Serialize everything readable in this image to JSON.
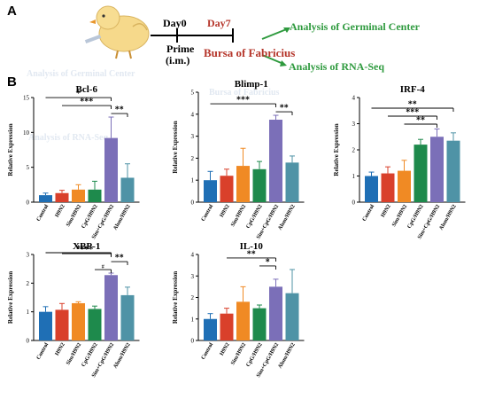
{
  "panel_a": {
    "letter": "A",
    "day0": "Day0",
    "day7": "Day7",
    "prime": "Prime",
    "route": "(i.m.)",
    "organ": "Bursa of Fabricius",
    "analysis1": "Analysis of Germinal Center",
    "analysis2": "Analysis of RNA-Seq",
    "colors": {
      "green": "#2e9a3e",
      "red": "#b5352a"
    }
  },
  "panel_b": {
    "letter": "B"
  },
  "ghost_text": {
    "g1": "Analysis of Germinal Center",
    "g2": "Bursa of Fabricius",
    "g3": "Analysis of RNA-Seq"
  },
  "group_colors": [
    "#1f6fb5",
    "#d9402b",
    "#f08a24",
    "#1e8a4c",
    "#7b6fb8",
    "#4f93a6"
  ],
  "chart_data": [
    {
      "type": "bar",
      "title": "Bcl-6",
      "ylabel": "Relative Expression",
      "categories": [
        "Control",
        "H9N2",
        "Sim/H9N2",
        "CpG/H9N2",
        "Sim+CpG/H9N2",
        "Alum/H9N2"
      ],
      "values": [
        1.0,
        1.3,
        1.8,
        1.8,
        9.2,
        3.5
      ],
      "errors": [
        0.3,
        0.4,
        0.7,
        1.2,
        3.0,
        2.0
      ],
      "ylim": [
        0,
        15
      ],
      "yticks": [
        0,
        5,
        10,
        15
      ],
      "significance": [
        {
          "from": 0,
          "to": 4,
          "label": "*"
        },
        {
          "from": 1,
          "to": 4,
          "label": "***"
        },
        {
          "from": 4,
          "to": 5,
          "label": "**"
        }
      ]
    },
    {
      "type": "bar",
      "title": "Blimp-1",
      "ylabel": "Relative Expression",
      "categories": [
        "Control",
        "H9N2",
        "Sim/H9N2",
        "CpG/H9N2",
        "Sim+CpG/H9N2",
        "Alum/H9N2"
      ],
      "values": [
        1.0,
        1.2,
        1.65,
        1.5,
        3.75,
        1.8
      ],
      "errors": [
        0.4,
        0.3,
        0.8,
        0.35,
        0.2,
        0.3
      ],
      "ylim": [
        0,
        5
      ],
      "yticks": [
        0,
        1,
        2,
        3,
        4,
        5
      ],
      "significance": [
        {
          "from": 0,
          "to": 4,
          "label": "***"
        },
        {
          "from": 4,
          "to": 5,
          "label": "**"
        }
      ]
    },
    {
      "type": "bar",
      "title": "IRF-4",
      "ylabel": "Relative Expression",
      "categories": [
        "Control",
        "H9N2",
        "Sim/H9N2",
        "CpG/H9N2",
        "Sim+CpG/H9N2",
        "Alum/H9N2"
      ],
      "values": [
        1.0,
        1.1,
        1.2,
        2.2,
        2.5,
        2.35
      ],
      "errors": [
        0.15,
        0.25,
        0.4,
        0.2,
        0.3,
        0.3
      ],
      "ylim": [
        0,
        4
      ],
      "yticks": [
        0,
        1,
        2,
        3,
        4
      ],
      "significance": [
        {
          "from": 0,
          "to": 5,
          "label": "**"
        },
        {
          "from": 1,
          "to": 4,
          "label": "***"
        },
        {
          "from": 2,
          "to": 4,
          "label": "**"
        }
      ]
    },
    {
      "type": "bar",
      "title": "XBP-1",
      "ylabel": "Relative Expression",
      "categories": [
        "Control",
        "H9N2",
        "Sim/H9N2",
        "CpG/H9N2",
        "Sim+CpG/H9N2",
        "Alum/H9N2"
      ],
      "values": [
        1.0,
        1.07,
        1.3,
        1.1,
        2.28,
        1.58
      ],
      "errors": [
        0.18,
        0.22,
        0.05,
        0.1,
        0.07,
        0.28
      ],
      "ylim": [
        0,
        3
      ],
      "yticks": [
        0,
        1,
        2,
        3
      ],
      "significance": [
        {
          "from": 0,
          "to": 4,
          "label": "*"
        },
        {
          "from": 1,
          "to": 4,
          "label": "***"
        },
        {
          "from": 3,
          "to": 4,
          "label": "#"
        },
        {
          "from": 4,
          "to": 5,
          "label": "**"
        }
      ]
    },
    {
      "type": "bar",
      "title": "IL-10",
      "ylabel": "Relative Expression",
      "categories": [
        "Control",
        "H9N2",
        "Sim/H9N2",
        "CpG/H9N2",
        "Sim+CpG/H9N2",
        "Alum/H9N2"
      ],
      "values": [
        1.0,
        1.25,
        1.8,
        1.5,
        2.5,
        2.2
      ],
      "errors": [
        0.25,
        0.25,
        0.7,
        0.15,
        0.35,
        1.1
      ],
      "ylim": [
        0,
        4
      ],
      "yticks": [
        0,
        1,
        2,
        3,
        4
      ],
      "significance": [
        {
          "from": 1,
          "to": 4,
          "label": "**"
        },
        {
          "from": 3,
          "to": 4,
          "label": "*"
        }
      ]
    }
  ]
}
